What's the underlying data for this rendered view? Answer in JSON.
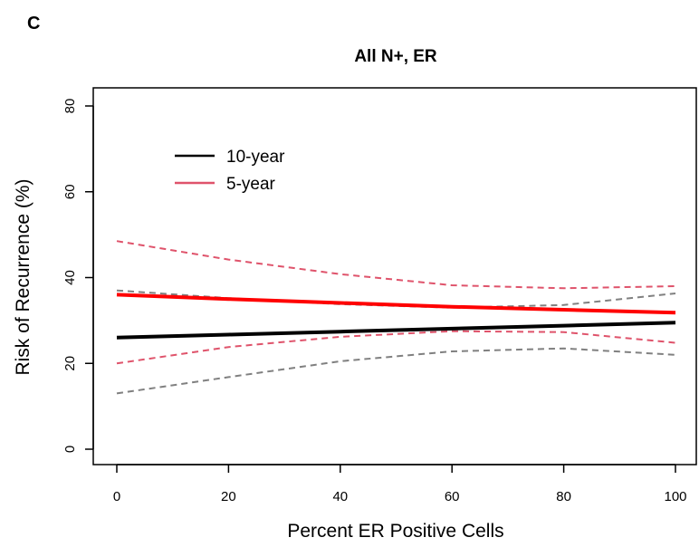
{
  "panel_label": "C",
  "chart_data": {
    "type": "line",
    "title": "All N+, ER",
    "xlabel": "Percent ER Positive Cells",
    "ylabel": "Risk of Recurrence (%)",
    "xlim": [
      0,
      100
    ],
    "ylim": [
      0,
      80
    ],
    "xticks": [
      "0",
      "20",
      "40",
      "60",
      "80",
      "100"
    ],
    "yticks": [
      "0",
      "20",
      "40",
      "60",
      "80"
    ],
    "grid": false,
    "legend_position": "top-left",
    "legend": [
      {
        "label": "10-year",
        "color": "#000000"
      },
      {
        "label": "5-year",
        "color": "#df536b"
      }
    ],
    "x": [
      0,
      20,
      40,
      60,
      80,
      100
    ],
    "series": [
      {
        "name": "10-year",
        "role": "estimate",
        "color": "#000000",
        "style": "solid",
        "values": [
          26,
          26.7,
          27.4,
          28.1,
          28.8,
          29.5
        ]
      },
      {
        "name": "10-year",
        "role": "upper-ci",
        "color": "#808080",
        "style": "dashed",
        "values": [
          37,
          35.2,
          33.8,
          33,
          33.6,
          36.3
        ]
      },
      {
        "name": "10-year",
        "role": "lower-ci",
        "color": "#808080",
        "style": "dashed",
        "values": [
          13,
          16.8,
          20.5,
          22.8,
          23.5,
          22
        ]
      },
      {
        "name": "5-year",
        "role": "estimate",
        "color": "#ff0000",
        "style": "solid",
        "values": [
          36,
          35,
          34.1,
          33.2,
          32.5,
          31.8
        ]
      },
      {
        "name": "5-year",
        "role": "upper-ci",
        "color": "#df536b",
        "style": "dashed",
        "values": [
          48.5,
          44.2,
          40.8,
          38.2,
          37.5,
          38
        ]
      },
      {
        "name": "5-year",
        "role": "lower-ci",
        "color": "#df536b",
        "style": "dashed",
        "values": [
          20,
          23.8,
          26.2,
          27.5,
          27.3,
          24.8
        ]
      }
    ]
  }
}
